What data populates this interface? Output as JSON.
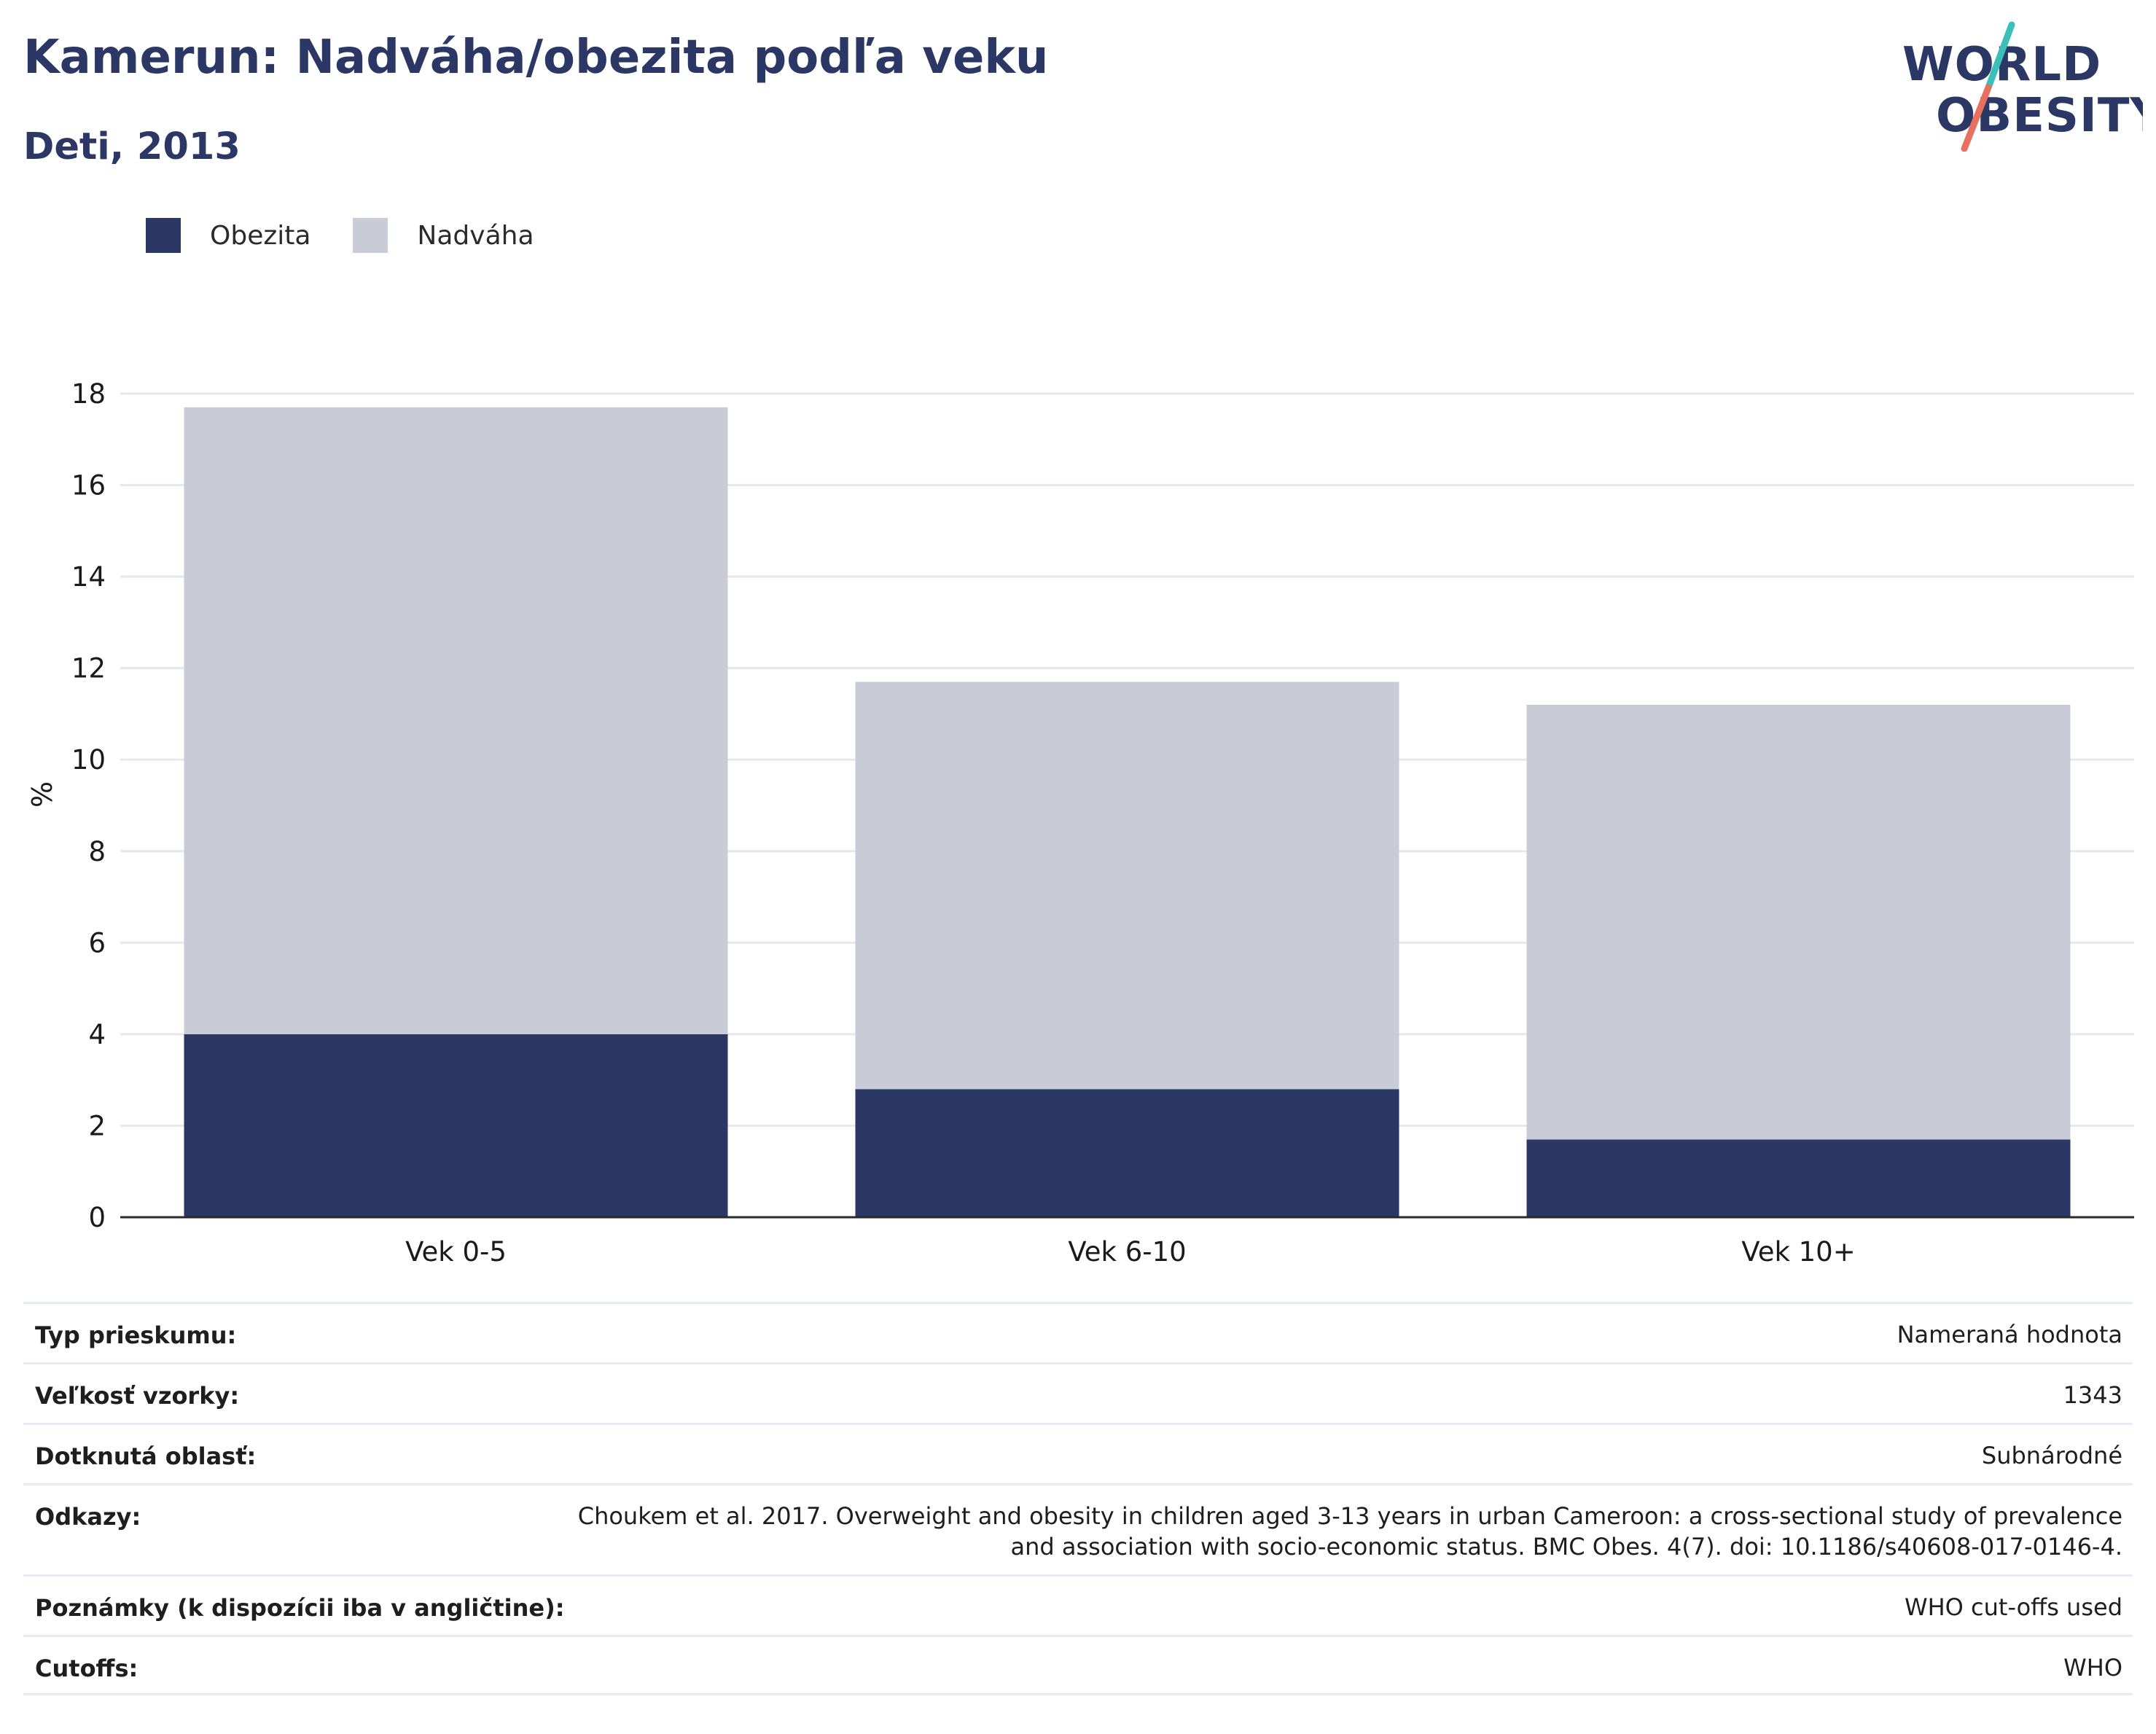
{
  "header": {
    "title": "Kamerun: Nadváha/obezita podľa veku",
    "subtitle": "Deti, 2013"
  },
  "logo": {
    "line1": "WORLD",
    "line2": "OBESITY"
  },
  "colors": {
    "obesity": "#2b3764",
    "overweight": "#c9ccd7",
    "grid": "#e6e8ee",
    "axis": "#2a2a2a",
    "logo_text": "#2b3764",
    "logo_teal": "#3bbfb8",
    "logo_coral": "#e8705f"
  },
  "legend": [
    {
      "label": "Obezita",
      "color": "#2b3764"
    },
    {
      "label": "Nadváha",
      "color": "#c9ccd7"
    }
  ],
  "chart_data": {
    "type": "bar",
    "stacked": true,
    "categories": [
      "Vek 0-5",
      "Vek 6-10",
      "Vek 10+"
    ],
    "series": [
      {
        "name": "Obezita",
        "values": [
          4.0,
          2.8,
          1.7
        ]
      },
      {
        "name": "Nadváha",
        "values": [
          13.7,
          8.9,
          9.5
        ]
      }
    ],
    "totals": [
      17.7,
      11.7,
      11.2
    ],
    "ylabel": "%",
    "ylim": [
      0,
      18
    ],
    "yticks": [
      0,
      2,
      4,
      6,
      8,
      10,
      12,
      14,
      16,
      18
    ],
    "grid": true,
    "legend_position": "top-left"
  },
  "info": [
    {
      "label": "Typ prieskumu:",
      "value": "Nameraná hodnota"
    },
    {
      "label": "Veľkosť vzorky:",
      "value": "1343"
    },
    {
      "label": "Dotknutá oblasť:",
      "value": "Subnárodné"
    },
    {
      "label": "Odkazy:",
      "value": "Choukem et al. 2017. Overweight and obesity in children aged 3-13 years in urban Cameroon: a cross-sectional study of prevalence and association with socio-economic status. BMC Obes. 4(7). doi: 10.1186/s40608-017-0146-4."
    },
    {
      "label": "Poznámky (k dispozícii iba v angličtine):",
      "value": "WHO cut-offs used"
    },
    {
      "label": "Cutoffs:",
      "value": "WHO"
    }
  ]
}
